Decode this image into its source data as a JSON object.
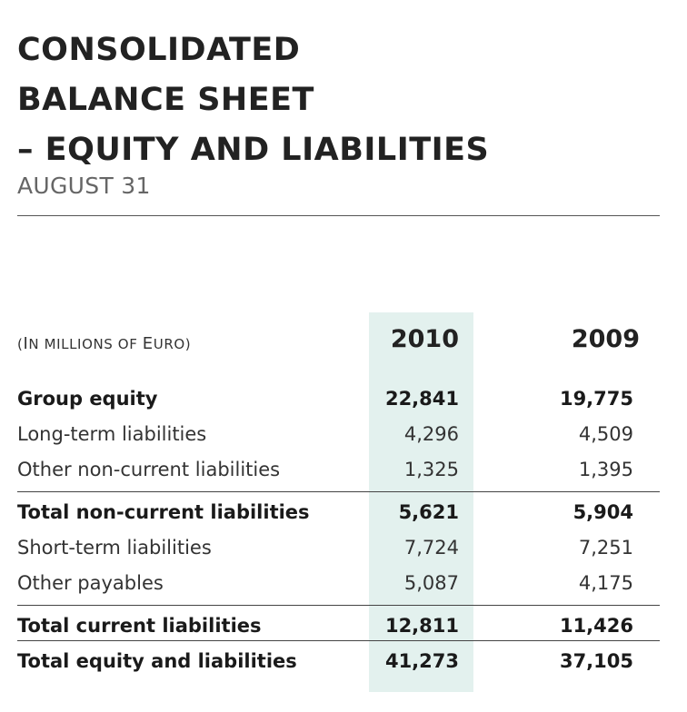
{
  "header": {
    "title_lines": [
      "CONSOLIDATED",
      "BALANCE SHEET",
      "– EQUITY AND LIABILITIES"
    ],
    "subtitle": "AUGUST 31"
  },
  "table": {
    "units_open": "(",
    "units_first_cap": "I",
    "units_rest": "N MILLIONS OF ",
    "units_cap2": "E",
    "units_end": "URO)",
    "columns": [
      "2010",
      "2009"
    ],
    "rows": [
      {
        "label": "Group equity",
        "v2010": "22,841",
        "v2009": "19,775",
        "bold": true
      },
      {
        "label": "Long-term liabilities",
        "v2010": "4,296",
        "v2009": "4,509",
        "bold": false
      },
      {
        "label": "Other non-current liabilities",
        "v2010": "1,325",
        "v2009": "1,395",
        "bold": false
      },
      {
        "label": "Total non-current liabilities",
        "v2010": "5,621",
        "v2009": "5,904",
        "bold": true
      },
      {
        "label": "Short-term liabilities",
        "v2010": "7,724",
        "v2009": "7,251",
        "bold": false
      },
      {
        "label": "Other payables",
        "v2010": "5,087",
        "v2009": "4,175",
        "bold": false
      },
      {
        "label": "Total current liabilities",
        "v2010": "12,811",
        "v2009": "11,426",
        "bold": true
      },
      {
        "label": "Total equity and liabilities",
        "v2010": "41,273",
        "v2009": "37,105",
        "bold": true
      }
    ]
  },
  "colors": {
    "highlight_column": "#e3f1ee",
    "rule": "#444444"
  }
}
